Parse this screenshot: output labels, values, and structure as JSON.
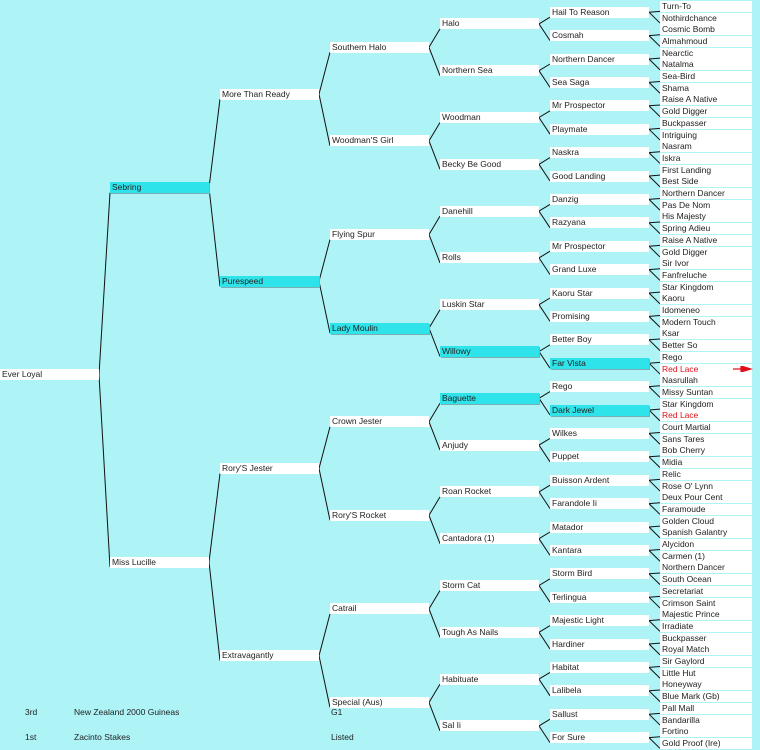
{
  "subject": "Ever Loyal",
  "gen1": [
    {
      "name": "Sebring",
      "highlight": true
    },
    {
      "name": "Miss Lucille"
    }
  ],
  "gen2": [
    {
      "name": "More Than Ready"
    },
    {
      "name": "Purespeed",
      "highlight": true
    },
    {
      "name": "Rory'S Jester"
    },
    {
      "name": "Extravagantly"
    }
  ],
  "gen3": [
    {
      "name": "Southern Halo"
    },
    {
      "name": "Woodman'S Girl"
    },
    {
      "name": "Flying Spur"
    },
    {
      "name": "Lady Moulin",
      "highlight": true
    },
    {
      "name": "Crown Jester"
    },
    {
      "name": "Rory'S Rocket"
    },
    {
      "name": "Catrail"
    },
    {
      "name": "Special (Aus)"
    }
  ],
  "gen4": [
    {
      "name": "Halo"
    },
    {
      "name": "Northern Sea"
    },
    {
      "name": "Woodman"
    },
    {
      "name": "Becky Be Good"
    },
    {
      "name": "Danehill"
    },
    {
      "name": "Rolls"
    },
    {
      "name": "Luskin Star"
    },
    {
      "name": "Willowy",
      "highlight": true
    },
    {
      "name": "Baguette",
      "highlight": true
    },
    {
      "name": "Anjudy"
    },
    {
      "name": "Roan Rocket"
    },
    {
      "name": "Cantadora (1)"
    },
    {
      "name": "Storm Cat"
    },
    {
      "name": "Tough As Nails"
    },
    {
      "name": "Habituate"
    },
    {
      "name": "Sal Ii"
    }
  ],
  "gen5": [
    {
      "name": "Hail To Reason"
    },
    {
      "name": "Cosmah"
    },
    {
      "name": "Northern Dancer"
    },
    {
      "name": "Sea Saga"
    },
    {
      "name": "Mr Prospector"
    },
    {
      "name": "Playmate"
    },
    {
      "name": "Naskra"
    },
    {
      "name": "Good Landing"
    },
    {
      "name": "Danzig"
    },
    {
      "name": "Razyana"
    },
    {
      "name": "Mr Prospector"
    },
    {
      "name": "Grand Luxe"
    },
    {
      "name": "Kaoru Star"
    },
    {
      "name": "Promising"
    },
    {
      "name": "Better Boy"
    },
    {
      "name": "Far Vista",
      "highlight": true
    },
    {
      "name": "Rego"
    },
    {
      "name": "Dark Jewel",
      "highlight": true
    },
    {
      "name": "Wilkes"
    },
    {
      "name": "Puppet"
    },
    {
      "name": "Buisson Ardent"
    },
    {
      "name": "Farandole Ii"
    },
    {
      "name": "Matador"
    },
    {
      "name": "Kantara"
    },
    {
      "name": "Storm Bird"
    },
    {
      "name": "Terlingua"
    },
    {
      "name": "Majestic Light"
    },
    {
      "name": "Hardiner"
    },
    {
      "name": "Habitat"
    },
    {
      "name": "Lalibela"
    },
    {
      "name": "Sallust"
    },
    {
      "name": "For Sure"
    }
  ],
  "gen6": [
    {
      "name": "Turn-To"
    },
    {
      "name": "Nothirdchance"
    },
    {
      "name": "Cosmic Bomb"
    },
    {
      "name": "Almahmoud"
    },
    {
      "name": "Nearctic"
    },
    {
      "name": "Natalma"
    },
    {
      "name": "Sea-Bird"
    },
    {
      "name": "Shama"
    },
    {
      "name": "Raise A Native"
    },
    {
      "name": "Gold Digger"
    },
    {
      "name": "Buckpasser"
    },
    {
      "name": "Intriguing"
    },
    {
      "name": "Nasram"
    },
    {
      "name": "Iskra"
    },
    {
      "name": "First Landing"
    },
    {
      "name": "Best Side"
    },
    {
      "name": "Northern Dancer"
    },
    {
      "name": "Pas De Nom"
    },
    {
      "name": "His Majesty"
    },
    {
      "name": "Spring Adieu"
    },
    {
      "name": "Raise A Native"
    },
    {
      "name": "Gold Digger"
    },
    {
      "name": "Sir Ivor"
    },
    {
      "name": "Fanfreluche"
    },
    {
      "name": "Star Kingdom"
    },
    {
      "name": "Kaoru"
    },
    {
      "name": "Idomeneo"
    },
    {
      "name": "Modern Touch"
    },
    {
      "name": "Ksar"
    },
    {
      "name": "Better So"
    },
    {
      "name": "Rego"
    },
    {
      "name": "Red Lace",
      "red": true
    },
    {
      "name": "Nasrullah"
    },
    {
      "name": "Missy Suntan"
    },
    {
      "name": "Star Kingdom"
    },
    {
      "name": "Red Lace",
      "red": true
    },
    {
      "name": "Court Martial"
    },
    {
      "name": "Sans Tares"
    },
    {
      "name": "Bob Cherry"
    },
    {
      "name": "Midia"
    },
    {
      "name": "Relic"
    },
    {
      "name": "Rose O' Lynn"
    },
    {
      "name": "Deux Pour Cent"
    },
    {
      "name": "Faramoude"
    },
    {
      "name": "Golden Cloud"
    },
    {
      "name": "Spanish Galantry"
    },
    {
      "name": "Alycidon"
    },
    {
      "name": "Carmen (1)"
    },
    {
      "name": "Northern Dancer"
    },
    {
      "name": "South Ocean"
    },
    {
      "name": "Secretariat"
    },
    {
      "name": "Crimson Saint"
    },
    {
      "name": "Majestic Prince"
    },
    {
      "name": "Irradiate"
    },
    {
      "name": "Buckpasser"
    },
    {
      "name": "Royal Match"
    },
    {
      "name": "Sir Gaylord"
    },
    {
      "name": "Little Hut"
    },
    {
      "name": "Honeyway"
    },
    {
      "name": "Blue Mark (Gb)"
    },
    {
      "name": "Pall Mall"
    },
    {
      "name": "Bandarilla"
    },
    {
      "name": "Fortino"
    },
    {
      "name": "Gold Proof (Ire)"
    }
  ],
  "results": [
    {
      "place": "3rd",
      "race": "New Zealand 2000 Guineas",
      "grade": "G1"
    },
    {
      "place": "1st",
      "race": "Zacinto Stakes",
      "grade": "Listed"
    }
  ],
  "colors": {
    "background": "#aef3f6",
    "box": "#ffffff",
    "highlight": "#2fe3ea",
    "red_text": "#e0101a",
    "line": "#111111"
  },
  "arrow_icon": "red-arrow-icon"
}
